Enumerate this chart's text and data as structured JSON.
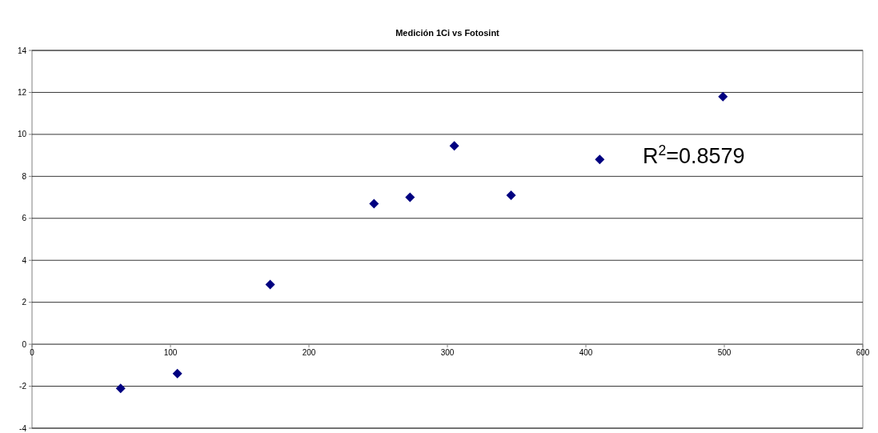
{
  "chart_data": {
    "type": "scatter",
    "title": "Medición 1Ci vs Fotosint",
    "x": [
      64,
      105,
      172,
      247,
      273,
      305,
      346,
      410,
      499
    ],
    "series": [
      {
        "color": "#000080",
        "values": [
          -2.1,
          -1.4,
          2.85,
          6.7,
          7.0,
          9.45,
          7.1,
          8.8,
          11.8
        ]
      }
    ],
    "xlim": [
      0,
      600
    ],
    "xticks": [
      0,
      100,
      200,
      300,
      400,
      500,
      600
    ],
    "ylim": [
      -4,
      14
    ],
    "yticks": [
      -4,
      -2,
      0,
      2,
      4,
      6,
      8,
      10,
      12,
      14
    ],
    "grid": "y",
    "marker": "diamond",
    "annotations": [
      "R$^{2}$=0.8579"
    ]
  }
}
